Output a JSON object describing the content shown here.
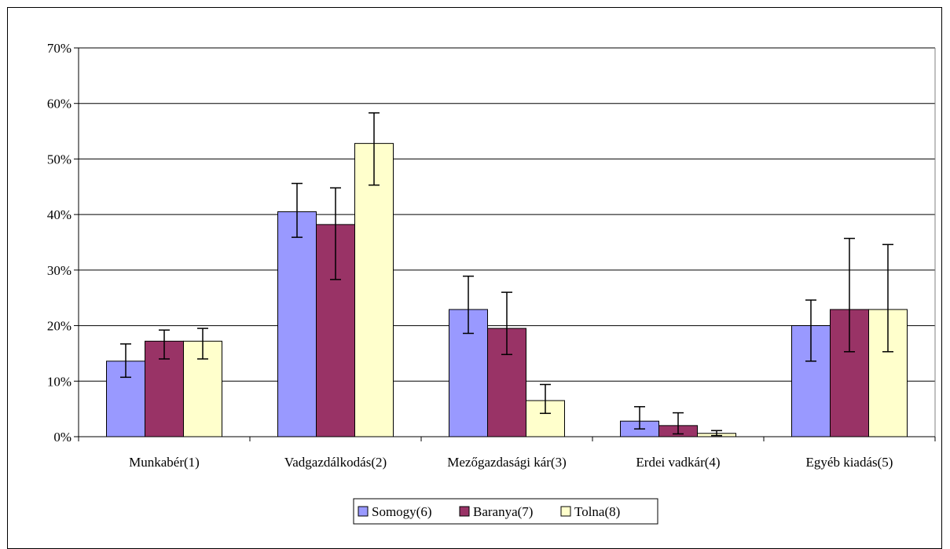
{
  "chart_data": {
    "type": "bar",
    "categories": [
      "Munkabér(1)",
      "Vadgazdálkodás(2)",
      "Mezőgazdasági kár(3)",
      "Erdei vadkár(4)",
      "Egyéb kiadás(5)"
    ],
    "series": [
      {
        "name": "Somogy(6)",
        "color": "#9999ff",
        "values": [
          13.6,
          40.5,
          22.9,
          2.8,
          20.0
        ],
        "err_low": [
          10.7,
          35.9,
          18.6,
          1.4,
          13.6
        ],
        "err_high": [
          16.7,
          45.6,
          28.9,
          5.4,
          24.6
        ]
      },
      {
        "name": "Baranya(7)",
        "color": "#993366",
        "values": [
          17.2,
          38.2,
          19.5,
          2.0,
          22.9
        ],
        "err_low": [
          14.0,
          28.3,
          14.8,
          0.5,
          15.3
        ],
        "err_high": [
          19.2,
          44.8,
          26.0,
          4.3,
          35.7
        ]
      },
      {
        "name": "Tolna(8)",
        "color": "#ffffcc",
        "values": [
          17.2,
          52.8,
          6.5,
          0.6,
          22.9
        ],
        "err_low": [
          14.0,
          45.3,
          4.2,
          0.2,
          15.3
        ],
        "err_high": [
          19.5,
          58.3,
          9.4,
          1.1,
          34.6
        ]
      }
    ],
    "y_ticks": [
      "0%",
      "10%",
      "20%",
      "30%",
      "40%",
      "50%",
      "60%",
      "70%"
    ],
    "ylim": [
      0,
      70
    ],
    "grid": true,
    "legend_position": "bottom"
  }
}
